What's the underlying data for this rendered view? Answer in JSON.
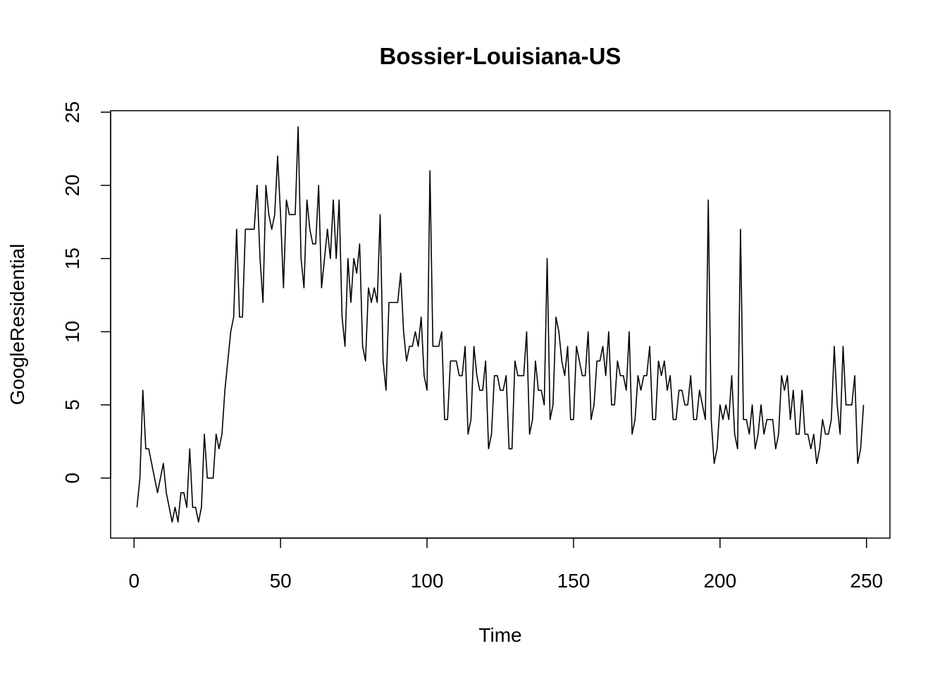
{
  "chart_data": {
    "type": "line",
    "title": "Bossier-Louisiana-US",
    "xlabel": "Time",
    "ylabel": "GoogleResidential",
    "xlim": [
      -8,
      258
    ],
    "ylim": [
      -4.1,
      25.1
    ],
    "xticks": [
      0,
      50,
      100,
      150,
      200,
      250
    ],
    "yticks": [
      0,
      5,
      10,
      15,
      20,
      25
    ],
    "x_start": 1,
    "grid": false,
    "series": [
      {
        "color": "#000000",
        "values": [
          -2,
          0,
          6,
          2,
          2,
          1,
          0,
          -1,
          0,
          1,
          -1,
          -2,
          -3,
          -2,
          -3,
          -1,
          -1,
          -2,
          2,
          -2,
          -2,
          -3,
          -2,
          3,
          0,
          0,
          0,
          3,
          2,
          3,
          6,
          8,
          10,
          11,
          17,
          11,
          11,
          17,
          17,
          17,
          17,
          20,
          15,
          12,
          20,
          18,
          17,
          18,
          22,
          18,
          13,
          19,
          18,
          18,
          18,
          24,
          15,
          13,
          19,
          17,
          16,
          16,
          20,
          13,
          15,
          17,
          15,
          19,
          15,
          19,
          11,
          9,
          15,
          12,
          15,
          14,
          16,
          9,
          8,
          13,
          12,
          13,
          12,
          18,
          8,
          6,
          12,
          12,
          12,
          12,
          14,
          10,
          8,
          9,
          9,
          10,
          9,
          11,
          7,
          6,
          21,
          9,
          9,
          9,
          10,
          4,
          4,
          8,
          8,
          8,
          7,
          7,
          9,
          3,
          4,
          9,
          7,
          6,
          6,
          8,
          2,
          3,
          7,
          7,
          6,
          6,
          7,
          2,
          2,
          8,
          7,
          7,
          7,
          10,
          3,
          4,
          8,
          6,
          6,
          5,
          15,
          4,
          5,
          11,
          10,
          8,
          7,
          9,
          4,
          4,
          9,
          8,
          7,
          7,
          10,
          4,
          5,
          8,
          8,
          9,
          7,
          10,
          5,
          5,
          8,
          7,
          7,
          6,
          10,
          3,
          4,
          7,
          6,
          7,
          7,
          9,
          4,
          4,
          8,
          7,
          8,
          6,
          7,
          4,
          4,
          6,
          6,
          5,
          5,
          7,
          4,
          4,
          6,
          5,
          4,
          19,
          4,
          1,
          2,
          5,
          4,
          5,
          4,
          7,
          3,
          2,
          17,
          4,
          4,
          3,
          5,
          2,
          3,
          5,
          3,
          4,
          4,
          4,
          2,
          3,
          7,
          6,
          7,
          4,
          6,
          3,
          3,
          6,
          3,
          3,
          2,
          3,
          1,
          2,
          4,
          3,
          3,
          4,
          9,
          5,
          3,
          9,
          5,
          5,
          5,
          7,
          1,
          2,
          5
        ]
      }
    ]
  }
}
